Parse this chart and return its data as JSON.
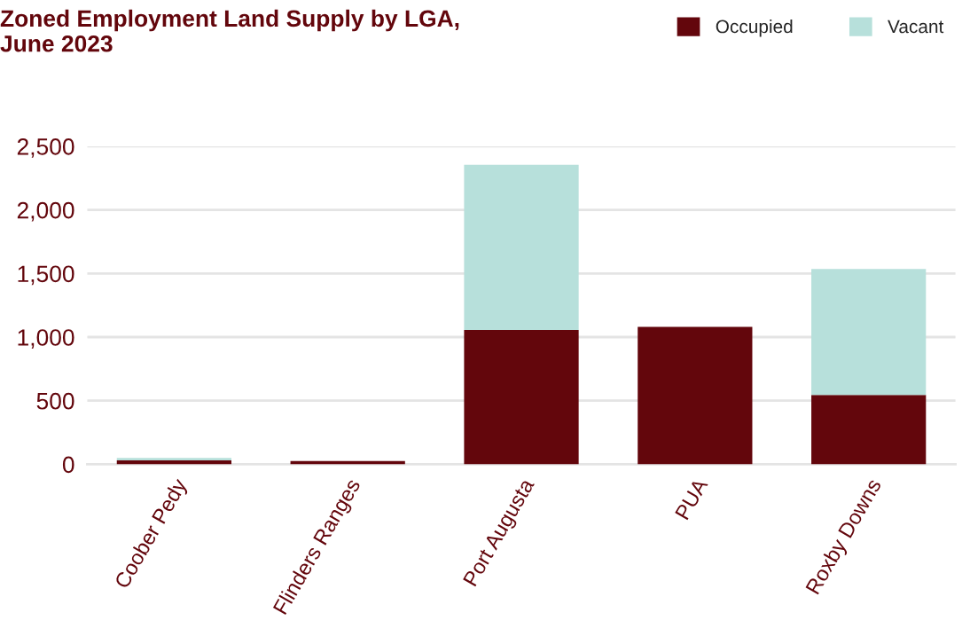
{
  "chart_data": {
    "type": "bar",
    "title": "Zoned Employment Land Supply by LGA,\nJune 2023",
    "categories": [
      "Coober Pedy",
      "Flinders Ranges",
      "Port Augusta",
      "PUA",
      "Roxby Downs"
    ],
    "stacked": true,
    "series": [
      {
        "name": "Occupied",
        "color": "#63060c",
        "values": [
          30,
          25,
          1055,
          1080,
          545
        ]
      },
      {
        "name": "Vacant",
        "color": "#b7e0db",
        "values": [
          20,
          null,
          1300,
          null,
          990
        ]
      }
    ],
    "ylim": [
      0,
      2500
    ],
    "yticks": [
      {
        "value": 0,
        "label": "0"
      },
      {
        "value": 500,
        "label": "500"
      },
      {
        "value": 1000,
        "label": "1,000"
      },
      {
        "value": 1500,
        "label": "1,500"
      },
      {
        "value": 2000,
        "label": "2,000"
      },
      {
        "value": 2500,
        "label": "2,500"
      }
    ],
    "grid": "y",
    "legend": "top right"
  }
}
